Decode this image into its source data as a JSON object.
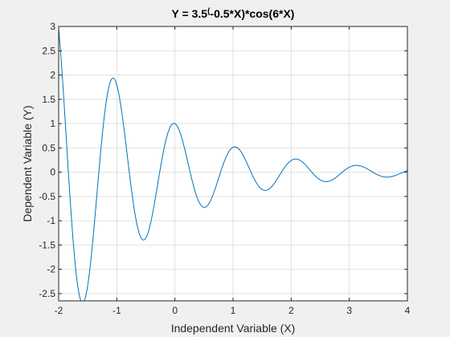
{
  "chart_data": {
    "type": "line",
    "title": {
      "prefix": "Y = 3.5",
      "superscript": "(",
      "suffix": "-0.5*X)*cos(6*X)"
    },
    "xlabel": "Independent Variable (X)",
    "ylabel": "Dependent Variable (Y)",
    "xlim": [
      -2,
      4
    ],
    "ylim": [
      -2.65,
      3
    ],
    "xticks": [
      -2,
      -1,
      0,
      1,
      2,
      3,
      4
    ],
    "yticks": [
      -2.5,
      -2,
      -1.5,
      -1,
      -0.5,
      0,
      0.5,
      1,
      1.5,
      2,
      2.5,
      3
    ],
    "grid": true,
    "line_color": "#0072bd",
    "series": [
      {
        "function": "3.5^(-0.5*X)*cos(6*X)",
        "x_start": -2,
        "x_end": 4,
        "samples": 1201
      }
    ]
  }
}
